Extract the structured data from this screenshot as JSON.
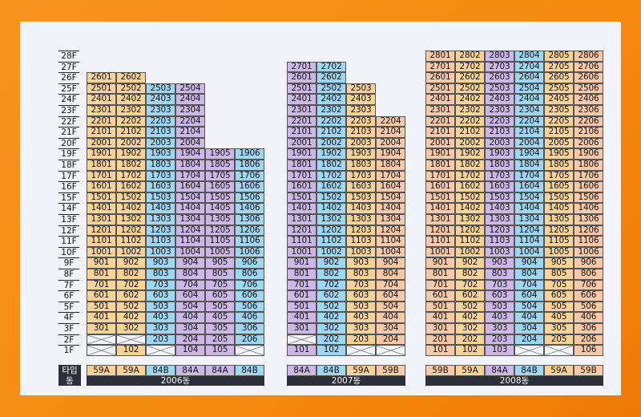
{
  "floors": [
    "28F",
    "27F",
    "26F",
    "25F",
    "24F",
    "23F",
    "22F",
    "21F",
    "20F",
    "19F",
    "18F",
    "17F",
    "16F",
    "15F",
    "14F",
    "13F",
    "12F",
    "11F",
    "10F",
    "9F",
    "8F",
    "7F",
    "6F",
    "5F",
    "4F",
    "3F",
    "2F",
    "1F"
  ],
  "row_headers": {
    "type": "타입",
    "building": "동"
  },
  "colors": {
    "59A": "#f7d39a",
    "59B": "#f7c9a8",
    "84A": "#cdb7e6",
    "84B": "#9fd6f2"
  },
  "buildings": [
    {
      "name": "2006동",
      "types": [
        "59A",
        "59A",
        "84B",
        "84A",
        "84A",
        "84B"
      ],
      "top": [
        26,
        26,
        25,
        25,
        19,
        19
      ],
      "empty": [
        [],
        [
          "1"
        ],
        [],
        [
          "1"
        ],
        [],
        []
      ],
      "vacant": [
        [
          "2",
          "1"
        ],
        [
          "2"
        ],
        [
          "1"
        ],
        [],
        [],
        [
          "1"
        ]
      ]
    },
    {
      "name": "2007동",
      "types": [
        "84A",
        "84B",
        "59A",
        "59B"
      ],
      "top": [
        27,
        27,
        25,
        22
      ],
      "empty": [
        [],
        [],
        [],
        []
      ],
      "vacant": [
        [
          "2"
        ],
        [],
        [
          "1"
        ],
        [
          "1"
        ]
      ]
    },
    {
      "name": "2008동",
      "types": [
        "59B",
        "59A",
        "84A",
        "84B",
        "59A",
        "59B"
      ],
      "top": [
        28,
        28,
        28,
        28,
        28,
        28
      ],
      "empty": [
        [],
        [],
        [],
        [],
        [],
        []
      ],
      "vacant": [
        [],
        [],
        [],
        [
          "1"
        ],
        [
          "1"
        ],
        []
      ]
    }
  ]
}
